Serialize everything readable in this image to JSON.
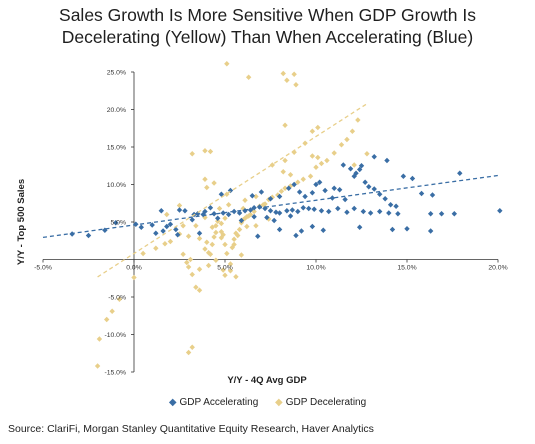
{
  "chart_data": {
    "type": "scatter",
    "title": "Sales Growth Is More Sensitive When GDP Growth Is Decelerating (Yellow) Than When Accelerating (Blue)",
    "title_lines": [
      "Sales Growth Is More Sensitive When GDP Growth Is",
      "Decelerating (Yellow) Than When Accelerating (Blue)"
    ],
    "xlabel": "Y/Y - 4Q Avg GDP",
    "ylabel": "Y/Y - Top 500 Sales",
    "xlim": [
      -5.0,
      20.0
    ],
    "ylim": [
      -15.0,
      25.0
    ],
    "xticks": [
      "-5.0%",
      "0.0%",
      "5.0%",
      "10.0%",
      "15.0%",
      "20.0%"
    ],
    "yticks": [
      "25.0%",
      "20.0%",
      "15.0%",
      "10.0%",
      "5.0%",
      "-5.0%",
      "-10.0%",
      "-15.0%"
    ],
    "legend_position": "bottom",
    "series": [
      {
        "name": "GDP Accelerating",
        "color": "#3a6ea5",
        "marker": "diamond",
        "trendline": {
          "slope": 0.33,
          "intercept": 4.6,
          "x_range": [
            -5.0,
            20.0
          ]
        },
        "points": [
          [
            -3.4,
            3.4
          ],
          [
            -2.5,
            3.2
          ],
          [
            -1.6,
            3.9
          ],
          [
            -1.0,
            4.9
          ],
          [
            0.1,
            4.7
          ],
          [
            1.0,
            4.6
          ],
          [
            1.6,
            3.8
          ],
          [
            1.8,
            4.4
          ],
          [
            2.0,
            4.7
          ],
          [
            2.3,
            4.0
          ],
          [
            1.5,
            6.5
          ],
          [
            2.5,
            6.6
          ],
          [
            2.8,
            6.5
          ],
          [
            3.3,
            6.0
          ],
          [
            3.5,
            6.1
          ],
          [
            3.8,
            6.0
          ],
          [
            3.9,
            6.4
          ],
          [
            4.2,
            6.9
          ],
          [
            4.4,
            6.1
          ],
          [
            4.9,
            6.2
          ],
          [
            5.2,
            6.0
          ],
          [
            5.5,
            6.4
          ],
          [
            5.8,
            6.2
          ],
          [
            6.1,
            6.5
          ],
          [
            6.4,
            6.6
          ],
          [
            6.6,
            6.9
          ],
          [
            6.9,
            7.0
          ],
          [
            7.2,
            6.8
          ],
          [
            7.5,
            6.5
          ],
          [
            7.8,
            6.3
          ],
          [
            8.0,
            6.2
          ],
          [
            8.4,
            6.5
          ],
          [
            8.7,
            6.6
          ],
          [
            9.0,
            6.4
          ],
          [
            9.3,
            6.9
          ],
          [
            9.6,
            6.8
          ],
          [
            9.9,
            6.7
          ],
          [
            10.3,
            6.5
          ],
          [
            10.7,
            6.4
          ],
          [
            11.2,
            6.8
          ],
          [
            11.7,
            6.3
          ],
          [
            12.1,
            6.8
          ],
          [
            12.6,
            6.4
          ],
          [
            13.0,
            6.2
          ],
          [
            13.5,
            6.4
          ],
          [
            14.0,
            6.2
          ],
          [
            14.5,
            6.1
          ],
          [
            16.3,
            6.1
          ],
          [
            16.9,
            6.1
          ],
          [
            17.6,
            6.1
          ],
          [
            20.1,
            6.5
          ],
          [
            3.2,
            5.3
          ],
          [
            4.6,
            5.5
          ],
          [
            5.9,
            5.2
          ],
          [
            7.3,
            5.6
          ],
          [
            8.6,
            5.8
          ],
          [
            4.8,
            8.7
          ],
          [
            5.3,
            9.2
          ],
          [
            6.5,
            8.5
          ],
          [
            7.0,
            9.0
          ],
          [
            7.5,
            8.1
          ],
          [
            8.0,
            8.4
          ],
          [
            8.5,
            9.5
          ],
          [
            8.8,
            10.0
          ],
          [
            9.1,
            9.0
          ],
          [
            9.4,
            8.4
          ],
          [
            9.8,
            8.9
          ],
          [
            10.2,
            10.3
          ],
          [
            10.5,
            9.2
          ],
          [
            10.9,
            8.2
          ],
          [
            11.3,
            9.3
          ],
          [
            11.6,
            8.0
          ],
          [
            11.9,
            12.1
          ],
          [
            12.2,
            11.5
          ],
          [
            12.4,
            12.0
          ],
          [
            12.7,
            10.3
          ],
          [
            12.9,
            9.7
          ],
          [
            13.2,
            9.4
          ],
          [
            13.5,
            8.7
          ],
          [
            13.8,
            8.1
          ],
          [
            14.1,
            7.3
          ],
          [
            14.4,
            7.1
          ],
          [
            14.8,
            11.1
          ],
          [
            15.3,
            10.8
          ],
          [
            15.8,
            8.8
          ],
          [
            16.4,
            8.6
          ],
          [
            17.9,
            11.5
          ],
          [
            12.5,
            12.5
          ],
          [
            12.1,
            11.1
          ],
          [
            11.5,
            12.6
          ],
          [
            13.9,
            13.2
          ],
          [
            13.2,
            13.7
          ],
          [
            11.0,
            9.5
          ],
          [
            10.0,
            10.0
          ],
          [
            6.6,
            5.7
          ],
          [
            15.0,
            4.1
          ],
          [
            16.3,
            3.8
          ],
          [
            12.4,
            4.3
          ],
          [
            14.2,
            4.0
          ],
          [
            8.0,
            4.0
          ],
          [
            9.2,
            3.8
          ],
          [
            10.4,
            3.9
          ],
          [
            3.6,
            3.5
          ],
          [
            2.4,
            3.3
          ],
          [
            6.8,
            3.1
          ],
          [
            8.9,
            3.2
          ],
          [
            9.8,
            4.4
          ],
          [
            0.4,
            4.3
          ],
          [
            1.2,
            3.5
          ],
          [
            7.7,
            5.2
          ]
        ]
      },
      {
        "name": "GDP Decelerating",
        "color": "#e8cf8a",
        "marker": "diamond",
        "trendline": {
          "slope": 1.56,
          "intercept": 0.8,
          "x_range": [
            -2.0,
            12.8
          ]
        },
        "points": [
          [
            -2.0,
            -14.2
          ],
          [
            -1.9,
            -10.6
          ],
          [
            -1.2,
            -6.9
          ],
          [
            -0.8,
            -5.3
          ],
          [
            0.0,
            -2.4
          ],
          [
            0.5,
            0.8
          ],
          [
            1.2,
            1.5
          ],
          [
            1.7,
            2.1
          ],
          [
            2.0,
            2.4
          ],
          [
            2.5,
            3.4
          ],
          [
            2.7,
            0.7
          ],
          [
            2.9,
            -0.4
          ],
          [
            3.0,
            -1.0
          ],
          [
            3.1,
            0.0
          ],
          [
            3.2,
            -2.0
          ],
          [
            3.0,
            -12.4
          ],
          [
            3.2,
            -11.7
          ],
          [
            3.4,
            -3.7
          ],
          [
            3.6,
            -4.1
          ],
          [
            3.6,
            -1.3
          ],
          [
            3.9,
            1.4
          ],
          [
            4.0,
            2.3
          ],
          [
            4.1,
            0.9
          ],
          [
            4.1,
            -0.8
          ],
          [
            4.2,
            0.7
          ],
          [
            4.3,
            2.0
          ],
          [
            4.4,
            3.0
          ],
          [
            4.5,
            3.6
          ],
          [
            4.5,
            4.5
          ],
          [
            4.6,
            5.1
          ],
          [
            4.8,
            4.8
          ],
          [
            4.8,
            3.7
          ],
          [
            4.9,
            3.3
          ],
          [
            5.0,
            2.0
          ],
          [
            5.1,
            0.8
          ],
          [
            5.3,
            -0.6
          ],
          [
            5.3,
            -1.5
          ],
          [
            5.6,
            -2.3
          ],
          [
            5.0,
            -2.1
          ],
          [
            4.9,
            -1.4
          ],
          [
            5.4,
            1.6
          ],
          [
            5.5,
            2.7
          ],
          [
            5.6,
            3.5
          ],
          [
            5.8,
            4.0
          ],
          [
            5.9,
            4.9
          ],
          [
            6.0,
            5.3
          ],
          [
            6.1,
            5.5
          ],
          [
            6.2,
            5.7
          ],
          [
            6.3,
            5.8
          ],
          [
            6.4,
            6.0
          ],
          [
            6.6,
            6.4
          ],
          [
            6.9,
            7.1
          ],
          [
            7.1,
            7.3
          ],
          [
            7.4,
            8.0
          ],
          [
            7.6,
            8.3
          ],
          [
            7.9,
            8.6
          ],
          [
            8.1,
            9.1
          ],
          [
            8.3,
            9.5
          ],
          [
            8.6,
            9.8
          ],
          [
            9.0,
            10.3
          ],
          [
            9.3,
            10.7
          ],
          [
            9.7,
            11.1
          ],
          [
            10.0,
            12.3
          ],
          [
            10.3,
            12.8
          ],
          [
            10.6,
            13.2
          ],
          [
            11.0,
            14.2
          ],
          [
            11.4,
            15.3
          ],
          [
            11.7,
            16.0
          ],
          [
            12.0,
            17.1
          ],
          [
            12.3,
            18.6
          ],
          [
            8.2,
            24.8
          ],
          [
            8.4,
            23.9
          ],
          [
            8.8,
            24.7
          ],
          [
            8.9,
            23.3
          ],
          [
            8.3,
            17.9
          ],
          [
            9.8,
            17.1
          ],
          [
            10.1,
            17.6
          ],
          [
            9.4,
            15.5
          ],
          [
            8.8,
            14.3
          ],
          [
            8.3,
            13.2
          ],
          [
            7.6,
            12.6
          ],
          [
            8.2,
            11.7
          ],
          [
            8.6,
            11.3
          ],
          [
            9.8,
            13.8
          ],
          [
            10.1,
            13.6
          ],
          [
            12.1,
            12.6
          ],
          [
            12.8,
            14.1
          ],
          [
            5.1,
            26.1
          ],
          [
            6.3,
            24.3
          ],
          [
            3.2,
            14.1
          ],
          [
            3.9,
            14.5
          ],
          [
            4.2,
            14.4
          ],
          [
            3.9,
            10.7
          ],
          [
            4.4,
            10.2
          ],
          [
            4.0,
            9.6
          ],
          [
            5.1,
            8.7
          ],
          [
            6.1,
            7.9
          ],
          [
            6.7,
            8.4
          ],
          [
            7.2,
            7.4
          ],
          [
            2.5,
            7.2
          ],
          [
            1.8,
            6.0
          ],
          [
            2.7,
            4.5
          ],
          [
            3.4,
            4.5
          ],
          [
            4.8,
            2.9
          ],
          [
            5.5,
            2.0
          ],
          [
            5.7,
            3.2
          ],
          [
            6.2,
            4.4
          ],
          [
            6.7,
            4.5
          ],
          [
            3.9,
            5.6
          ],
          [
            4.7,
            6.8
          ],
          [
            5.2,
            7.3
          ],
          [
            7.4,
            5.4
          ],
          [
            3.0,
            3.1
          ],
          [
            5.0,
            5.5
          ],
          [
            6.0,
            6.8
          ],
          [
            4.3,
            4.3
          ],
          [
            3.6,
            2.8
          ],
          [
            4.5,
            -0.1
          ],
          [
            5.9,
            0.6
          ],
          [
            -1.5,
            -8.0
          ]
        ]
      }
    ]
  },
  "source": "Source: ClariFi, Morgan Stanley Quantitative Equity Research, Haver Analytics"
}
